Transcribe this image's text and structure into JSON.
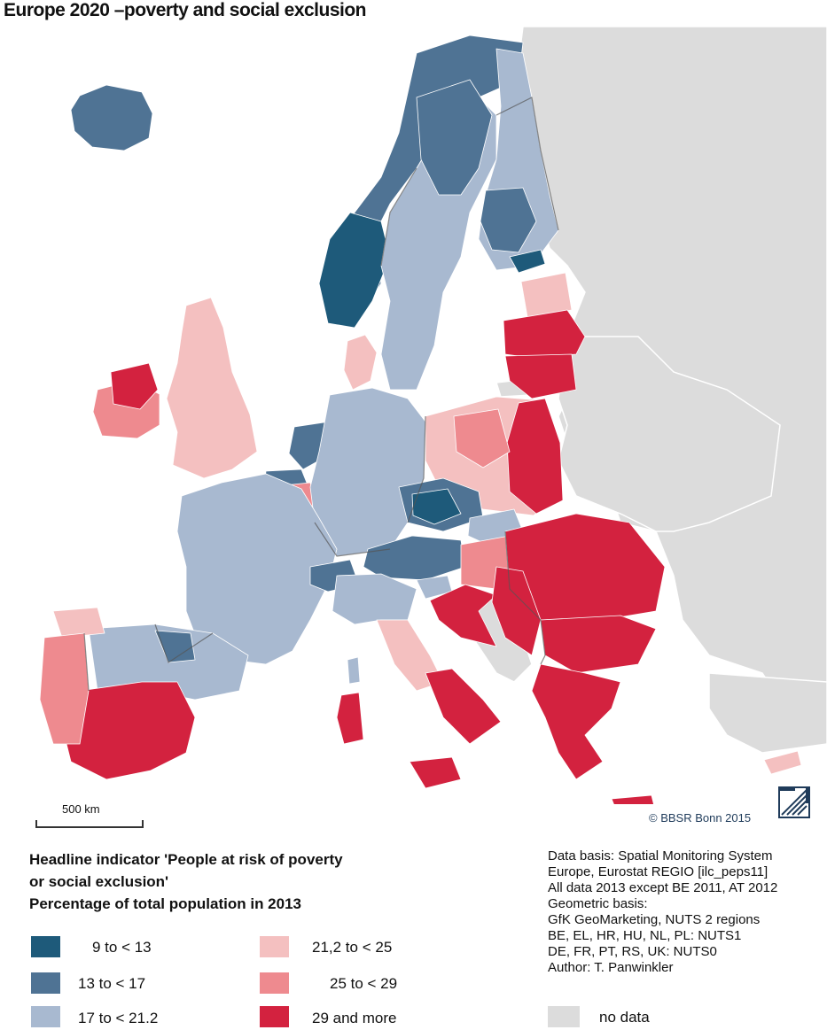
{
  "title": "Europe 2020 –poverty and social exclusion",
  "scale_label": "500 km",
  "credit": "© BBSR Bonn 2015",
  "legend": {
    "heading_lines": [
      "Headline indicator 'People at risk of poverty",
      "or social exclusion'",
      "Percentage of total population in 2013"
    ],
    "classes": [
      {
        "label": "9 to < 13",
        "color": "#1e5a7a"
      },
      {
        "label": "13 to < 17",
        "color": "#4f7394"
      },
      {
        "label": "17 to < 21.2",
        "color": "#a8b9d0"
      },
      {
        "label": "21,2 to < 25",
        "color": "#f4c0c0"
      },
      {
        "label": "25 to < 29",
        "color": "#ee8a8f"
      },
      {
        "label": "29 and more",
        "color": "#d3223f"
      }
    ],
    "no_data": {
      "label": "no data",
      "color": "#dcdcdc"
    }
  },
  "source_lines": [
    "Data basis: Spatial Monitoring System",
    "Europe, Eurostat REGIO [ilc_peps11]",
    "All data 2013 except BE 2011, AT 2012",
    "Geometric basis:",
    "GfK GeoMarketing, NUTS 2 regions",
    "BE, EL, HR, HU, NL, PL: NUTS1",
    "DE, FR, PT, RS, UK: NUTS0",
    "Author: T. Panwinkler"
  ],
  "regions": [
    {
      "name": "Iceland",
      "class": 1
    },
    {
      "name": "Norway",
      "class": 1
    },
    {
      "name": "Norway south-west",
      "class": 0
    },
    {
      "name": "Sweden",
      "class": 2
    },
    {
      "name": "Sweden north",
      "class": 1
    },
    {
      "name": "Finland",
      "class": 2
    },
    {
      "name": "Finland central",
      "class": 1
    },
    {
      "name": "Finland south",
      "class": 0
    },
    {
      "name": "Denmark",
      "class": 3
    },
    {
      "name": "Estonia",
      "class": 3
    },
    {
      "name": "Latvia",
      "class": 5
    },
    {
      "name": "Lithuania",
      "class": 5
    },
    {
      "name": "Ireland",
      "class": 4
    },
    {
      "name": "Northern Ireland",
      "class": 5
    },
    {
      "name": "United Kingdom",
      "class": 3
    },
    {
      "name": "Netherlands",
      "class": 1
    },
    {
      "name": "Belgium",
      "class": 1
    },
    {
      "name": "Belgium south",
      "class": 4
    },
    {
      "name": "Germany",
      "class": 2
    },
    {
      "name": "Poland",
      "class": 3
    },
    {
      "name": "Poland east",
      "class": 5
    },
    {
      "name": "Poland central",
      "class": 4
    },
    {
      "name": "Czech Republic",
      "class": 1
    },
    {
      "name": "Czech centre",
      "class": 0
    },
    {
      "name": "Slovakia",
      "class": 2
    },
    {
      "name": "Austria",
      "class": 1
    },
    {
      "name": "Hungary",
      "class": 4
    },
    {
      "name": "Slovenia",
      "class": 2
    },
    {
      "name": "Croatia",
      "class": 5
    },
    {
      "name": "Romania",
      "class": 5
    },
    {
      "name": "Bulgaria",
      "class": 5
    },
    {
      "name": "Serbia",
      "class": 5
    },
    {
      "name": "Greece",
      "class": 5
    },
    {
      "name": "France",
      "class": 2
    },
    {
      "name": "Switzerland",
      "class": 1
    },
    {
      "name": "Italy north",
      "class": 2
    },
    {
      "name": "Italy centre",
      "class": 3
    },
    {
      "name": "Italy south",
      "class": 5
    },
    {
      "name": "Sicily",
      "class": 5
    },
    {
      "name": "Sardinia",
      "class": 5
    },
    {
      "name": "Corsica",
      "class": 2
    },
    {
      "name": "Spain north",
      "class": 2
    },
    {
      "name": "Spain north-east",
      "class": 1
    },
    {
      "name": "Spain south",
      "class": 5
    },
    {
      "name": "Galicia",
      "class": 3
    },
    {
      "name": "Portugal",
      "class": 4
    },
    {
      "name": "Cyprus",
      "class": 3
    },
    {
      "name": "Crete",
      "class": 5
    }
  ]
}
